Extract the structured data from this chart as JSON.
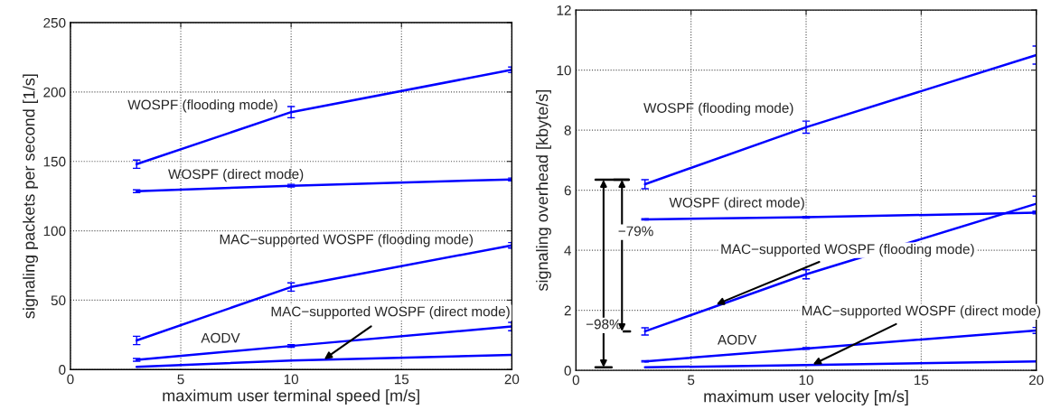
{
  "chart_data": [
    {
      "type": "line",
      "xlabel": "maximum user terminal speed [m/s]",
      "ylabel": "signaling packets per second [1/s]",
      "xlim": [
        0,
        20
      ],
      "ylim": [
        0,
        250
      ],
      "xticks": [
        0,
        5,
        10,
        15,
        20
      ],
      "yticks": [
        0,
        50,
        100,
        150,
        200,
        250
      ],
      "grid": true,
      "marker": "none",
      "line_style": "solid",
      "x": [
        3,
        10,
        20
      ],
      "series": [
        {
          "color": "#0000ff",
          "values": [
            148,
            185.5,
            216
          ],
          "errors": [
            3,
            4,
            2
          ]
        },
        {
          "color": "#0000ff",
          "values": [
            128.5,
            132.5,
            137
          ],
          "errors": [
            1,
            1,
            1
          ]
        },
        {
          "color": "#0000ff",
          "values": [
            21,
            59.5,
            89.5
          ],
          "errors": [
            3,
            3,
            2
          ]
        },
        {
          "color": "#0000ff",
          "values": [
            7,
            17,
            31
          ],
          "errors": [
            1,
            1,
            3
          ]
        },
        {
          "color": "#0000ff",
          "values": [
            2,
            6.5,
            10.5
          ]
        }
      ],
      "annotations": [
        {
          "text": "WOSPF (flooding mode)",
          "x": 10,
          "y": 185.5
        },
        {
          "text": "WOSPF (direct mode)",
          "x": 10,
          "y": 132.5
        },
        {
          "text": "MAC−supported WOSPF (flooding mode)",
          "x": 10,
          "y": 59.5
        },
        "AODV",
        {
          "text": "MAC−supported WOSPF (direct mode)",
          "x": 11.5,
          "y": 7.5
        }
      ]
    },
    {
      "type": "line",
      "xlabel": "maximum user velocity [m/s]",
      "ylabel": "signaling overhead [kbyte/s]",
      "xlim": [
        0,
        20
      ],
      "ylim": [
        0,
        12
      ],
      "xticks": [
        0,
        5,
        10,
        15,
        20
      ],
      "yticks": [
        0,
        2,
        4,
        6,
        8,
        10,
        12
      ],
      "grid": true,
      "marker": "none",
      "line_style": "solid",
      "x": [
        3,
        10,
        20
      ],
      "series": [
        {
          "color": "#0000ff",
          "values": [
            6.2,
            8.1,
            10.5
          ],
          "errors": [
            0.15,
            0.2,
            0.3
          ]
        },
        {
          "color": "#0000ff",
          "values": [
            5.03,
            5.1,
            5.25
          ],
          "errors": [
            0.02,
            0.03,
            0.04
          ]
        },
        {
          "color": "#0000ff",
          "values": [
            1.3,
            3.2,
            5.55
          ],
          "errors": [
            0.12,
            0.15,
            0.25
          ]
        },
        {
          "color": "#0000ff",
          "values": [
            0.3,
            0.73,
            1.33
          ],
          "errors": [
            0.02,
            0.03,
            0.1
          ]
        },
        {
          "color": "#0000ff",
          "values": [
            0.1,
            0.18,
            0.3
          ]
        }
      ],
      "annotations": [
        {
          "text": "WOSPF (flooding mode)",
          "x": 10,
          "y": 8.1
        },
        {
          "text": "WOSPF (direct mode)",
          "x": 10,
          "y": 5.1
        },
        {
          "text": "MAC−supported WOSPF (flooding mode)",
          "x": 6.1,
          "y": 2.2
        },
        "AODV",
        {
          "text": "MAC−supported WOSPF (direct mode)",
          "x": 10.3,
          "y": 0.2
        },
        "−98%",
        "−79%"
      ]
    }
  ]
}
